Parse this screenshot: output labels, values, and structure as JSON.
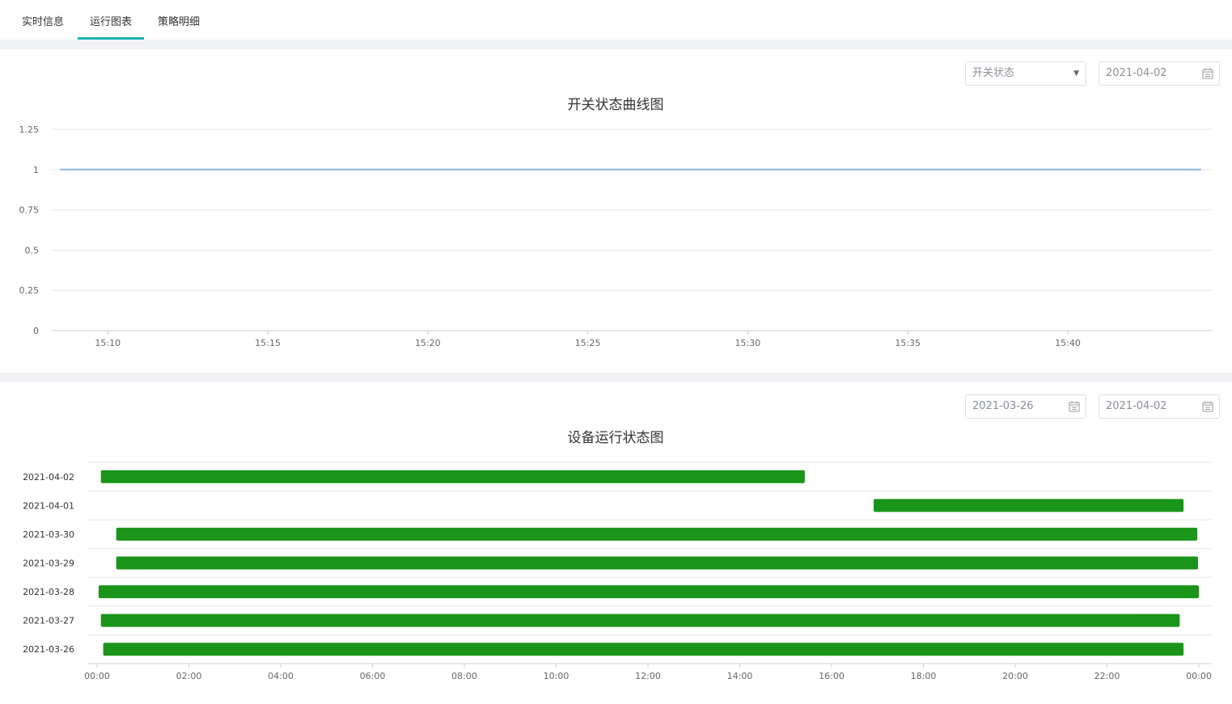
{
  "tabs": [
    {
      "label": "实时信息"
    },
    {
      "label": "运行图表"
    },
    {
      "label": "策略明细"
    }
  ],
  "switch_panel": {
    "status_select": {
      "value": "开关状态"
    },
    "date": {
      "value": "2021-04-02"
    }
  },
  "run_panel": {
    "start_date": {
      "value": "2021-03-26"
    },
    "end_date": {
      "value": "2021-04-02"
    }
  },
  "colors": {
    "accent": "#1ab2b2",
    "line": "#8ab6e8",
    "bar": "#1a951a",
    "grid": "#e6e6e6",
    "page_gap": "#f0f2f5"
  },
  "chart_data": [
    {
      "type": "line",
      "title": "开关状态曲线图",
      "xlabel": "",
      "ylabel": "",
      "x_ticks": [
        "15:10",
        "15:15",
        "15:20",
        "15:25",
        "15:30",
        "15:35",
        "15:40"
      ],
      "y_ticks": [
        "1.25",
        "1",
        "0.75",
        "0.5",
        "0.25",
        "0"
      ],
      "ylim": [
        0,
        1.25
      ],
      "xlim": [
        "15:08:15",
        "15:44:30"
      ],
      "series": [
        {
          "values": [
            {
              "x": "15:08:30",
              "y": 1
            },
            {
              "x": "15:44:10",
              "y": 1
            }
          ]
        }
      ],
      "grid": true
    },
    {
      "type": "bar",
      "orientation": "horizontal",
      "title": "设备运行状态图",
      "xlabel": "",
      "ylabel": "",
      "categories": [
        "2021-04-02",
        "2021-04-01",
        "2021-03-30",
        "2021-03-29",
        "2021-03-28",
        "2021-03-27",
        "2021-03-26"
      ],
      "x_ticks": [
        "00:00",
        "02:00",
        "04:00",
        "06:00",
        "08:00",
        "10:00",
        "12:00",
        "14:00",
        "16:00",
        "18:00",
        "20:00",
        "22:00",
        "00:00"
      ],
      "xlim": [
        "00:00",
        "24:00"
      ],
      "segments": [
        {
          "category": "2021-04-02",
          "start": "00:05",
          "end": "15:25"
        },
        {
          "category": "2021-04-01",
          "start": "16:55",
          "end": "23:40"
        },
        {
          "category": "2021-03-30",
          "start": "00:25",
          "end": "23:58"
        },
        {
          "category": "2021-03-29",
          "start": "00:25",
          "end": "23:59"
        },
        {
          "category": "2021-03-28",
          "start": "00:02",
          "end": "24:00"
        },
        {
          "category": "2021-03-27",
          "start": "00:05",
          "end": "23:35"
        },
        {
          "category": "2021-03-26",
          "start": "00:08",
          "end": "23:40"
        }
      ],
      "grid": true
    }
  ]
}
